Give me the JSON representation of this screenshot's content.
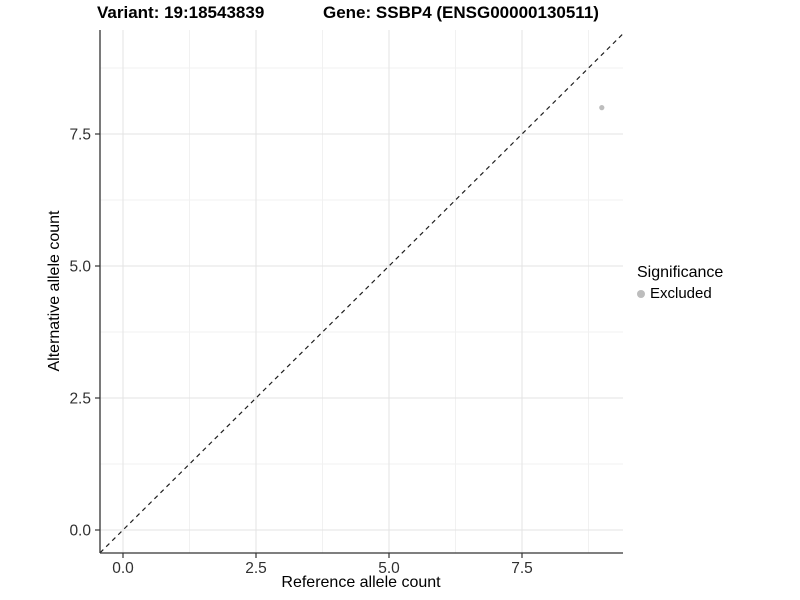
{
  "titles": {
    "variant": "Variant: 19:18543839",
    "gene": "Gene: SSBP4 (ENSG00000130511)"
  },
  "chart_data": {
    "type": "scatter",
    "title_left": "Variant: 19:18543839",
    "title_right": "Gene: SSBP4 (ENSG00000130511)",
    "xlabel": "Reference allele count",
    "ylabel": "Alternative allele count",
    "xlim": [
      -0.43,
      9.4
    ],
    "ylim": [
      -0.43,
      9.47
    ],
    "x_ticks": [
      0.0,
      2.5,
      5.0,
      7.5
    ],
    "x_tick_labels": [
      "0.0",
      "2.5",
      "5.0",
      "7.5"
    ],
    "y_ticks": [
      0.0,
      2.5,
      5.0,
      7.5
    ],
    "y_tick_labels": [
      "0.0",
      "2.5",
      "5.0",
      "7.5"
    ],
    "x_minor_ticks": [
      1.25,
      3.75,
      6.25,
      8.75
    ],
    "y_minor_ticks": [
      1.25,
      3.75,
      6.25,
      8.75
    ],
    "grid": true,
    "points": [
      {
        "x": 9,
        "y": 8,
        "series": "Excluded"
      }
    ],
    "reference_line": {
      "kind": "identity",
      "equation": "y = x",
      "style": "dashed"
    },
    "legend": {
      "title": "Significance",
      "position": "right",
      "items": [
        {
          "label": "Excluded",
          "color": "#bdbdbd",
          "marker": "circle"
        }
      ]
    },
    "colors": {
      "point": "#bdbdbd",
      "grid_major": "#e3e3e3",
      "grid_minor": "#f1f1f1",
      "axis_line": "#333333",
      "tick_label": "#303030",
      "dashed_line": "#1f1f1f",
      "background": "#ffffff"
    }
  }
}
